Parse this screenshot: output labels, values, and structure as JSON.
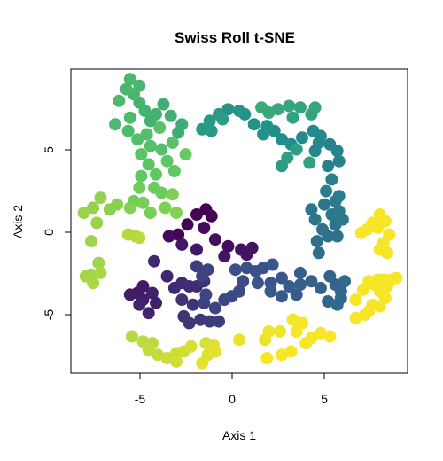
{
  "chart_data": {
    "type": "scatter",
    "title": "Swiss Roll t-SNE",
    "xlabel": "Axis 1",
    "ylabel": "Axis 2",
    "xlim": [
      -8.8,
      9.4
    ],
    "ylim": [
      -8.5,
      9.7
    ],
    "xticks": [
      -5,
      0,
      5
    ],
    "yticks": [
      -5,
      0,
      5
    ],
    "xtick_labels": [
      "-5",
      "0",
      "5"
    ],
    "ytick_labels": [
      "-5",
      "0",
      "5"
    ],
    "grid": false,
    "legend": "none",
    "colormap": "viridis",
    "color_stops": [
      "#440154",
      "#3b528b",
      "#21918c",
      "#5ec962",
      "#fde725"
    ],
    "points": [
      [
        -1.5,
        1.3,
        0.0
      ],
      [
        -1.2,
        0.9,
        0.01
      ],
      [
        -2.0,
        1.0,
        0.01
      ],
      [
        -2.5,
        0.4,
        0.02
      ],
      [
        -3.0,
        -0.2,
        0.02
      ],
      [
        -3.5,
        -0.3,
        0.03
      ],
      [
        -1.6,
        0.2,
        0.03
      ],
      [
        -1.0,
        -0.5,
        0.04
      ],
      [
        -0.3,
        -0.9,
        0.04
      ],
      [
        0.4,
        -1.1,
        0.05
      ],
      [
        1.0,
        -1.0,
        0.05
      ],
      [
        0.7,
        -1.4,
        0.06
      ],
      [
        -0.5,
        -1.5,
        0.06
      ],
      [
        -2.0,
        -1.1,
        0.07
      ],
      [
        -2.8,
        -0.8,
        0.07
      ],
      [
        -4.9,
        -3.3,
        0.08
      ],
      [
        -5.2,
        -3.7,
        0.08
      ],
      [
        -5.6,
        -3.8,
        0.09
      ],
      [
        -4.9,
        -4.1,
        0.09
      ],
      [
        -4.4,
        -3.7,
        0.1
      ],
      [
        -4.2,
        -4.3,
        0.1
      ],
      [
        -5.1,
        -4.4,
        0.11
      ],
      [
        -4.6,
        -4.9,
        0.11
      ],
      [
        -4.3,
        -1.8,
        0.12
      ],
      [
        -3.6,
        -2.7,
        0.12
      ],
      [
        -3.2,
        -3.4,
        0.13
      ],
      [
        -2.8,
        -3.1,
        0.13
      ],
      [
        -2.4,
        -3.3,
        0.14
      ],
      [
        -2.0,
        -3.3,
        0.14
      ],
      [
        -1.6,
        -3.0,
        0.15
      ],
      [
        -2.8,
        -4.1,
        0.15
      ],
      [
        -2.2,
        -4.4,
        0.16
      ],
      [
        -2.7,
        -5.1,
        0.16
      ],
      [
        -2.4,
        -5.5,
        0.17
      ],
      [
        -1.8,
        -5.3,
        0.17
      ],
      [
        -1.3,
        -5.4,
        0.18
      ],
      [
        -0.8,
        -5.4,
        0.18
      ],
      [
        -1.6,
        -4.3,
        0.19
      ],
      [
        -2.0,
        -2.1,
        0.19
      ],
      [
        -1.4,
        -2.3,
        0.2
      ],
      [
        -1.7,
        -2.7,
        0.2
      ],
      [
        -1.5,
        -3.8,
        0.21
      ],
      [
        -1.0,
        -4.6,
        0.21
      ],
      [
        -0.5,
        -4.1,
        0.22
      ],
      [
        -0.1,
        -3.9,
        0.22
      ],
      [
        0.3,
        -3.6,
        0.23
      ],
      [
        0.5,
        -3.0,
        0.23
      ],
      [
        0.1,
        -2.3,
        0.24
      ],
      [
        0.7,
        -2.2,
        0.24
      ],
      [
        1.2,
        -2.4,
        0.25
      ],
      [
        1.6,
        -2.2,
        0.25
      ],
      [
        1.3,
        -3.1,
        0.26
      ],
      [
        2.0,
        -3.1,
        0.26
      ],
      [
        2.1,
        -2.0,
        0.27
      ],
      [
        2.6,
        -2.8,
        0.27
      ],
      [
        2.0,
        -3.6,
        0.28
      ],
      [
        2.6,
        -3.9,
        0.28
      ],
      [
        3.0,
        -3.3,
        0.29
      ],
      [
        3.4,
        -3.8,
        0.29
      ],
      [
        3.6,
        -3.2,
        0.3
      ],
      [
        3.6,
        -2.5,
        0.3
      ],
      [
        4.2,
        -3.0,
        0.31
      ],
      [
        4.7,
        -3.4,
        0.31
      ],
      [
        5.2,
        -2.7,
        0.32
      ],
      [
        5.5,
        -3.2,
        0.32
      ],
      [
        5.1,
        -4.2,
        0.33
      ],
      [
        5.8,
        -3.6,
        0.33
      ],
      [
        5.6,
        -4.4,
        0.34
      ],
      [
        5.8,
        -4.0,
        0.34
      ],
      [
        6.0,
        -3.0,
        0.35
      ],
      [
        4.6,
        -1.3,
        0.36
      ],
      [
        4.5,
        -0.6,
        0.36
      ],
      [
        4.8,
        0.1,
        0.37
      ],
      [
        5.1,
        -0.3,
        0.37
      ],
      [
        5.6,
        -0.3,
        0.38
      ],
      [
        5.5,
        0.4,
        0.38
      ],
      [
        4.4,
        0.7,
        0.39
      ],
      [
        4.2,
        1.3,
        0.39
      ],
      [
        4.9,
        1.6,
        0.4
      ],
      [
        5.3,
        1.0,
        0.4
      ],
      [
        5.7,
        1.2,
        0.41
      ],
      [
        5.9,
        0.7,
        0.41
      ],
      [
        5.5,
        1.8,
        0.42
      ],
      [
        5.0,
        2.4,
        0.42
      ],
      [
        5.7,
        2.1,
        0.43
      ],
      [
        5.3,
        3.1,
        0.43
      ],
      [
        5.7,
        4.2,
        0.44
      ],
      [
        5.1,
        3.9,
        0.44
      ],
      [
        5.6,
        4.8,
        0.45
      ],
      [
        5.2,
        5.2,
        0.45
      ],
      [
        4.6,
        5.3,
        0.46
      ],
      [
        4.4,
        4.8,
        0.46
      ],
      [
        4.7,
        5.7,
        0.47
      ],
      [
        4.3,
        6.0,
        0.47
      ],
      [
        3.7,
        5.6,
        0.48
      ],
      [
        3.1,
        5.2,
        0.48
      ],
      [
        2.6,
        5.5,
        0.49
      ],
      [
        2.2,
        6.0,
        0.49
      ],
      [
        1.8,
        6.3,
        0.5
      ],
      [
        1.6,
        5.8,
        0.5
      ],
      [
        1.1,
        6.4,
        0.51
      ],
      [
        0.6,
        7.0,
        0.51
      ],
      [
        0.3,
        7.2,
        0.52
      ],
      [
        -0.3,
        7.3,
        0.52
      ],
      [
        -0.8,
        7.0,
        0.53
      ],
      [
        -1.3,
        6.6,
        0.53
      ],
      [
        -1.7,
        6.1,
        0.54
      ],
      [
        -1.2,
        6.0,
        0.54
      ],
      [
        -0.6,
        6.7,
        0.55
      ],
      [
        2.6,
        3.9,
        0.55
      ],
      [
        2.9,
        4.4,
        0.56
      ],
      [
        3.4,
        4.9,
        0.56
      ],
      [
        4.1,
        4.1,
        0.57
      ],
      [
        3.2,
        6.8,
        0.57
      ],
      [
        3.6,
        7.4,
        0.58
      ],
      [
        4.2,
        7.0,
        0.58
      ],
      [
        4.4,
        7.4,
        0.59
      ],
      [
        3.0,
        7.5,
        0.59
      ],
      [
        2.4,
        7.3,
        0.6
      ],
      [
        1.9,
        7.1,
        0.6
      ],
      [
        1.5,
        7.4,
        0.61
      ],
      [
        -2.8,
        6.4,
        0.62
      ],
      [
        -3.0,
        5.9,
        0.62
      ],
      [
        -3.4,
        6.9,
        0.63
      ],
      [
        -3.8,
        7.6,
        0.63
      ],
      [
        -4.2,
        7.0,
        0.64
      ],
      [
        -4.5,
        6.6,
        0.64
      ],
      [
        -4.8,
        7.2,
        0.65
      ],
      [
        -5.1,
        7.7,
        0.65
      ],
      [
        -5.4,
        8.2,
        0.66
      ],
      [
        -5.1,
        8.7,
        0.66
      ],
      [
        -5.6,
        9.1,
        0.67
      ],
      [
        -5.8,
        8.5,
        0.67
      ],
      [
        -6.2,
        7.8,
        0.68
      ],
      [
        -6.4,
        6.4,
        0.68
      ],
      [
        -5.6,
        6.8,
        0.69
      ],
      [
        -5.7,
        6.0,
        0.69
      ],
      [
        -5.2,
        5.5,
        0.7
      ],
      [
        -4.7,
        5.8,
        0.7
      ],
      [
        -4.5,
        5.1,
        0.71
      ],
      [
        -3.9,
        4.9,
        0.71
      ],
      [
        -3.3,
        5.3,
        0.72
      ],
      [
        -4.0,
        6.2,
        0.72
      ],
      [
        -5.0,
        4.6,
        0.73
      ],
      [
        -4.6,
        4.0,
        0.73
      ],
      [
        -3.6,
        4.2,
        0.74
      ],
      [
        -3.2,
        3.6,
        0.74
      ],
      [
        -4.2,
        3.4,
        0.75
      ],
      [
        -5.0,
        3.3,
        0.75
      ],
      [
        -2.6,
        4.6,
        0.76
      ],
      [
        -4.3,
        2.6,
        0.77
      ],
      [
        -3.9,
        2.3,
        0.77
      ],
      [
        -5.1,
        2.6,
        0.78
      ],
      [
        -5.4,
        1.8,
        0.78
      ],
      [
        -4.9,
        1.7,
        0.79
      ],
      [
        -4.5,
        1.1,
        0.79
      ],
      [
        -3.7,
        1.4,
        0.8
      ],
      [
        -3.3,
        2.2,
        0.8
      ],
      [
        -3.1,
        1.1,
        0.81
      ],
      [
        -5.6,
        1.4,
        0.81
      ],
      [
        -6.3,
        1.6,
        0.82
      ],
      [
        -6.7,
        1.3,
        0.82
      ],
      [
        -7.2,
        2.0,
        0.83
      ],
      [
        -7.6,
        1.4,
        0.83
      ],
      [
        -8.1,
        1.1,
        0.84
      ],
      [
        -7.4,
        0.5,
        0.84
      ],
      [
        -7.7,
        -0.6,
        0.85
      ],
      [
        -7.3,
        -1.9,
        0.85
      ],
      [
        -7.7,
        -2.6,
        0.86
      ],
      [
        -8.0,
        -2.7,
        0.86
      ],
      [
        -7.6,
        -3.1,
        0.87
      ],
      [
        -7.2,
        -2.5,
        0.87
      ],
      [
        -5.7,
        -0.2,
        0.88
      ],
      [
        -5.3,
        -0.3,
        0.88
      ],
      [
        -5.1,
        -0.4,
        0.89
      ],
      [
        -5.5,
        -6.3,
        0.89
      ],
      [
        -4.9,
        -6.6,
        0.9
      ],
      [
        -4.4,
        -6.7,
        0.9
      ],
      [
        -4.6,
        -7.1,
        0.91
      ],
      [
        -4.1,
        -7.4,
        0.91
      ],
      [
        -3.6,
        -7.6,
        0.92
      ],
      [
        -3.1,
        -7.3,
        0.92
      ],
      [
        -2.7,
        -7.2,
        0.93
      ],
      [
        -3.1,
        -7.8,
        0.93
      ],
      [
        -2.3,
        -6.9,
        0.94
      ],
      [
        -1.5,
        -6.7,
        0.94
      ],
      [
        -1.1,
        -6.8,
        0.95
      ],
      [
        -1.4,
        -7.4,
        0.95
      ],
      [
        -1.7,
        -7.9,
        0.96
      ],
      [
        -1.0,
        -7.2,
        0.96
      ],
      [
        0.3,
        -6.5,
        0.97
      ],
      [
        1.7,
        -6.5,
        0.97
      ],
      [
        1.9,
        -6.0,
        0.98
      ],
      [
        2.5,
        -6.0,
        0.98
      ],
      [
        1.8,
        -7.6,
        0.99
      ],
      [
        2.6,
        -7.4,
        0.99
      ],
      [
        3.2,
        -5.3,
        0.99
      ],
      [
        3.7,
        -5.5,
        0.99
      ],
      [
        3.4,
        -6.0,
        0.99
      ],
      [
        3.1,
        -7.2,
        0.99
      ],
      [
        3.9,
        -6.7,
        0.99
      ],
      [
        4.2,
        -6.4,
        0.99
      ],
      [
        4.7,
        -6.1,
        0.99
      ],
      [
        5.2,
        -6.3,
        0.99
      ],
      [
        6.6,
        -5.2,
        0.99
      ],
      [
        7.1,
        -5.0,
        0.99
      ],
      [
        7.3,
        -4.8,
        0.99
      ],
      [
        7.5,
        -4.4,
        0.99
      ],
      [
        7.9,
        -4.5,
        0.99
      ],
      [
        8.2,
        -4.0,
        0.99
      ],
      [
        7.9,
        -3.6,
        0.99
      ],
      [
        8.3,
        -3.3,
        0.99
      ],
      [
        7.6,
        -3.2,
        0.99
      ],
      [
        7.8,
        -2.9,
        0.99
      ],
      [
        8.1,
        -2.9,
        0.99
      ],
      [
        8.5,
        -2.9,
        0.99
      ],
      [
        8.8,
        -2.8,
        0.99
      ],
      [
        7.3,
        -3.0,
        0.99
      ],
      [
        7.0,
        -3.5,
        0.99
      ],
      [
        6.6,
        -4.1,
        0.99
      ],
      [
        7.9,
        1.0,
        0.99
      ],
      [
        8.2,
        0.6,
        0.99
      ],
      [
        7.8,
        0.2,
        0.99
      ],
      [
        8.4,
        -0.2,
        0.99
      ],
      [
        8.1,
        -0.7,
        0.99
      ],
      [
        7.9,
        -1.1,
        0.99
      ],
      [
        8.3,
        -1.3,
        0.99
      ],
      [
        7.2,
        0.1,
        0.99
      ],
      [
        6.9,
        -0.1,
        0.99
      ],
      [
        7.5,
        0.5,
        0.99
      ]
    ]
  }
}
